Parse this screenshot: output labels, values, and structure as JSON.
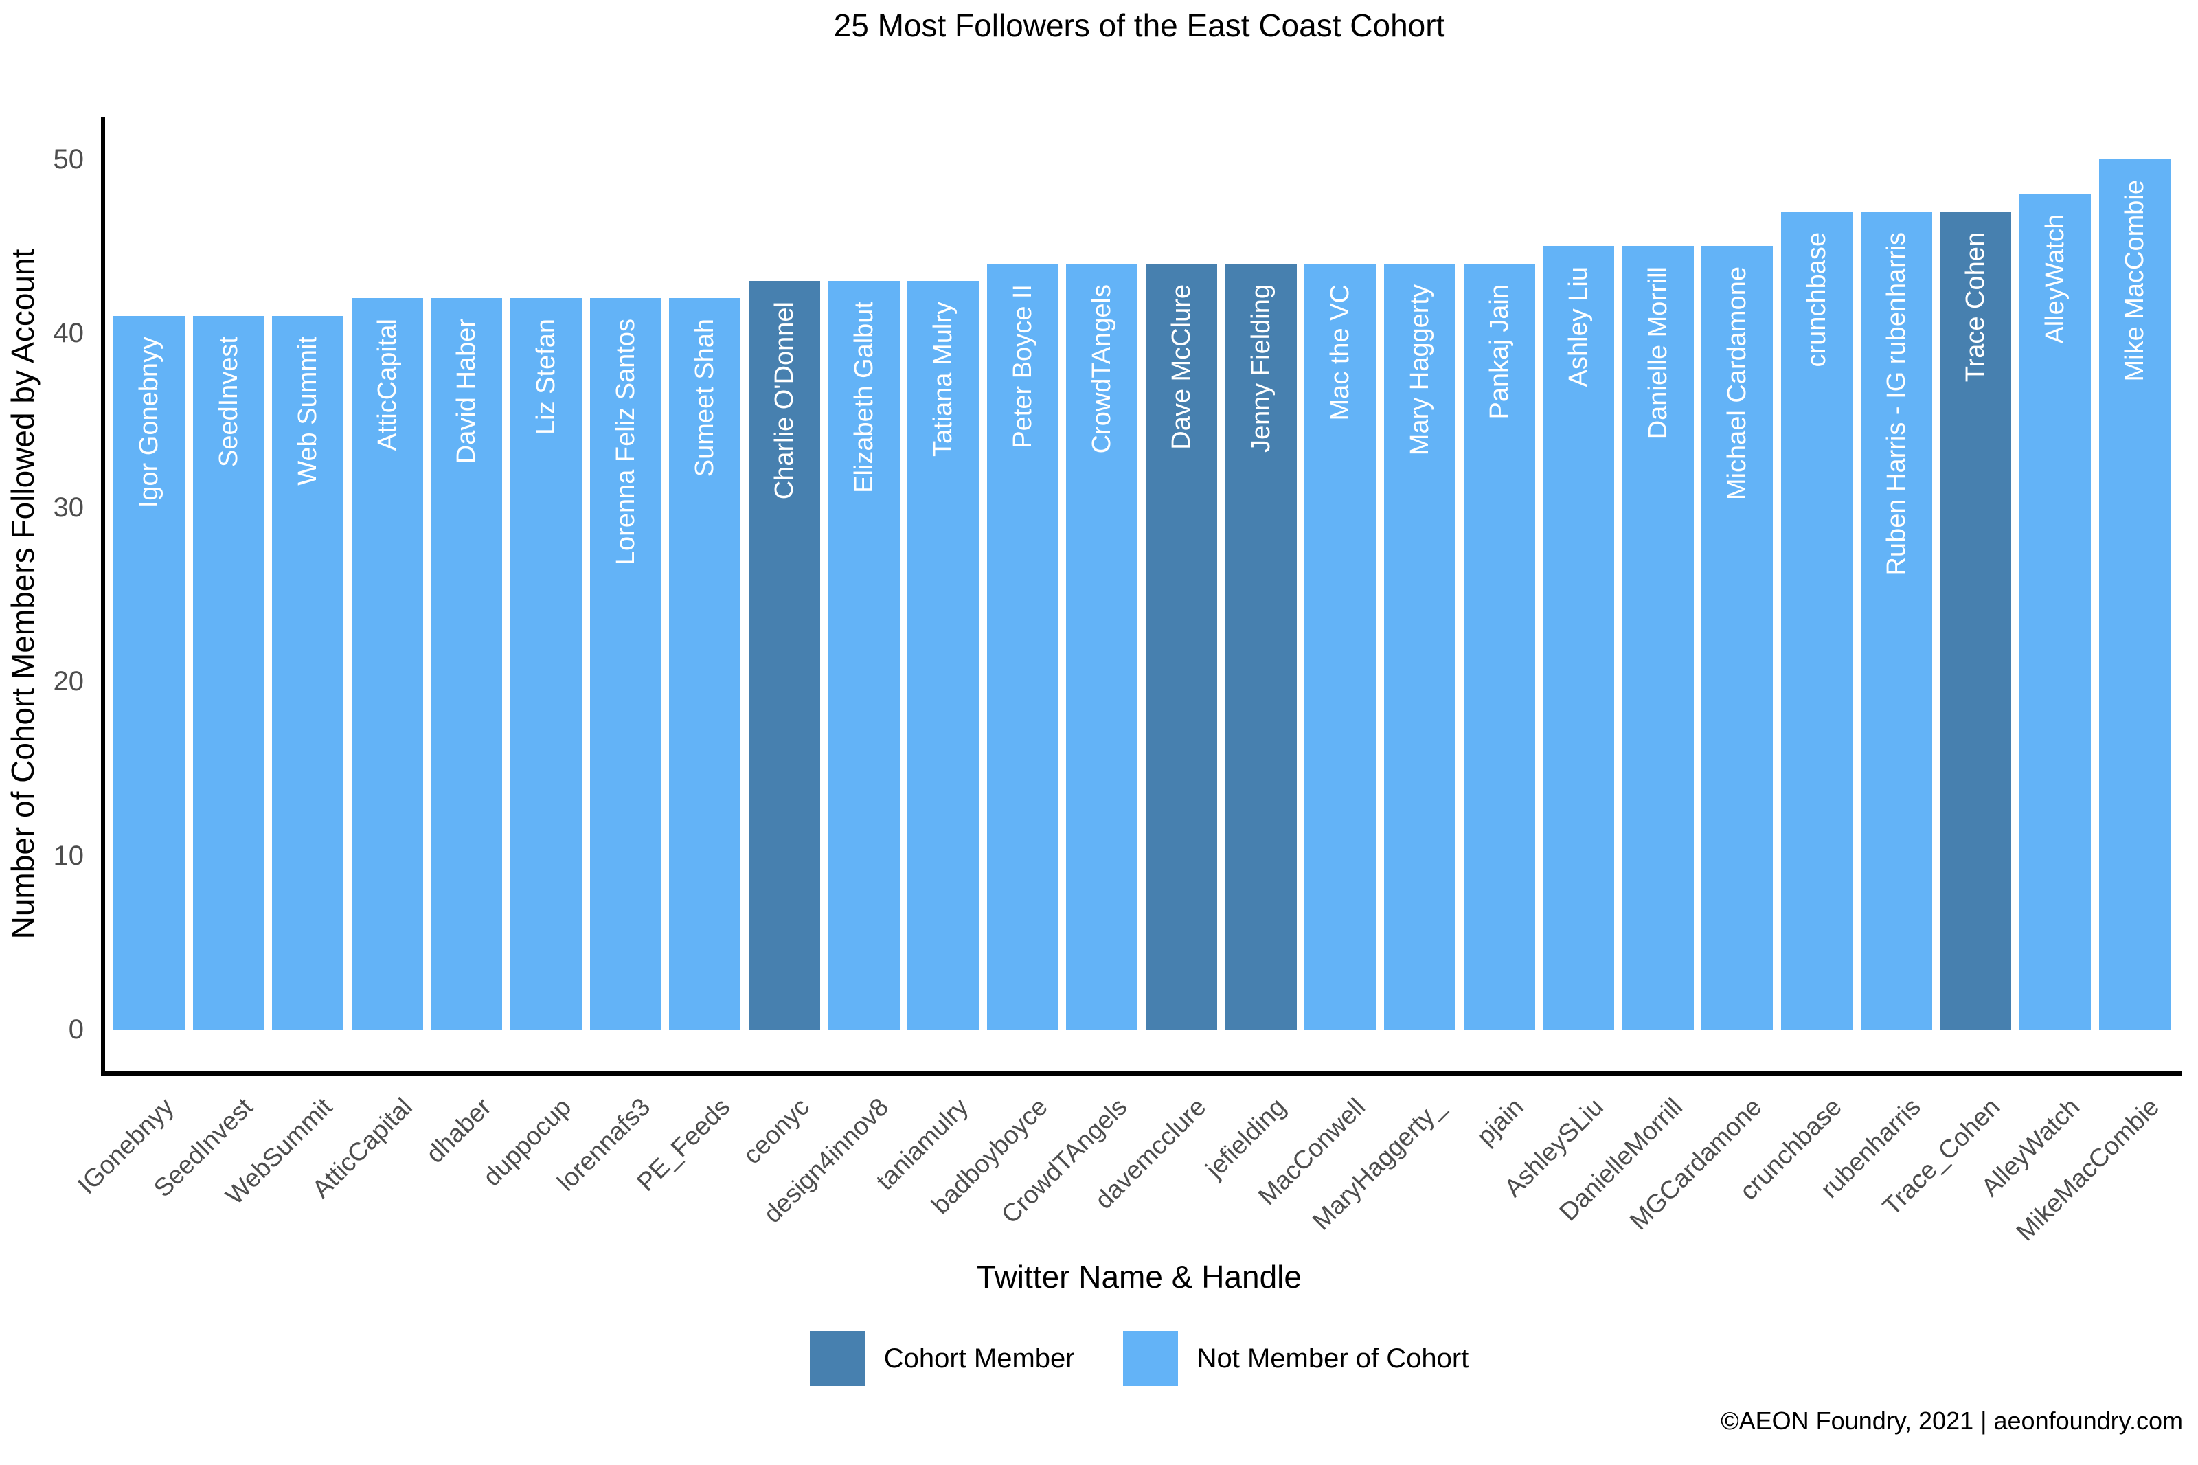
{
  "title": "25 Most Followers of the East Coast Cohort",
  "axes": {
    "y_label": "Number of Cohort Members Followed by Account",
    "x_label": "Twitter Name & Handle",
    "y_ticks": [
      0,
      10,
      20,
      30,
      40,
      50
    ]
  },
  "legend": {
    "items": [
      {
        "label": "Cohort Member",
        "color": "#4780AF"
      },
      {
        "label": "Not Member of Cohort",
        "color": "#63B3F7"
      }
    ]
  },
  "footer": "©AEON Foundry, 2021 | aeonfoundry.com",
  "chart_data": {
    "type": "bar",
    "title": "25 Most Followers of the East Coast Cohort",
    "xlabel": "Twitter Name & Handle",
    "ylabel": "Number of Cohort Members Followed by Account",
    "ylim": [
      0,
      50
    ],
    "grid": false,
    "legend_position": "bottom",
    "colors": {
      "cohort_member": "#4780AF",
      "not_member": "#63B3F7"
    },
    "categories": [
      "IGonebnyy",
      "SeedInvest",
      "WebSummit",
      "AtticCapital",
      "dhaber",
      "duppocup",
      "lorennafs3",
      "PE_Feeds",
      "ceonyc",
      "design4innov8",
      "taniamulry",
      "badboyboyce",
      "CrowdTAngels",
      "davemcclure",
      "jefielding",
      "MacConwell",
      "MaryHaggerty_",
      "pjain",
      "AshleySLiu",
      "DanielleMorrill",
      "MGCardamone",
      "crunchbase",
      "rubenharris",
      "Trace_Cohen",
      "AlleyWatch",
      "MikeMacCombie"
    ],
    "series": [
      {
        "name": "Number of Cohort Members Followed by Account",
        "values": [
          41,
          41,
          41,
          42,
          42,
          42,
          42,
          42,
          43,
          43,
          43,
          44,
          44,
          44,
          44,
          44,
          44,
          44,
          45,
          45,
          45,
          47,
          47,
          47,
          48,
          50
        ]
      }
    ],
    "bars": [
      {
        "display_name": "Igor Gonebnyy",
        "handle": "IGonebnyy",
        "value": 41,
        "cohort_member": false
      },
      {
        "display_name": "SeedInvest",
        "handle": "SeedInvest",
        "value": 41,
        "cohort_member": false
      },
      {
        "display_name": "Web Summit",
        "handle": "WebSummit",
        "value": 41,
        "cohort_member": false
      },
      {
        "display_name": "AtticCapital",
        "handle": "AtticCapital",
        "value": 42,
        "cohort_member": false
      },
      {
        "display_name": "David Haber",
        "handle": "dhaber",
        "value": 42,
        "cohort_member": false
      },
      {
        "display_name": "Liz Stefan",
        "handle": "duppocup",
        "value": 42,
        "cohort_member": false
      },
      {
        "display_name": "Lorenna Feliz Santos",
        "handle": "lorennafs3",
        "value": 42,
        "cohort_member": false
      },
      {
        "display_name": "Sumeet Shah",
        "handle": "PE_Feeds",
        "value": 42,
        "cohort_member": false
      },
      {
        "display_name": "Charlie O'Donnel",
        "handle": "ceonyc",
        "value": 43,
        "cohort_member": true
      },
      {
        "display_name": "Elizabeth Galbut",
        "handle": "design4innov8",
        "value": 43,
        "cohort_member": false
      },
      {
        "display_name": "Tatiana Mulry",
        "handle": "taniamulry",
        "value": 43,
        "cohort_member": false
      },
      {
        "display_name": "Peter Boyce II",
        "handle": "badboyboyce",
        "value": 44,
        "cohort_member": false
      },
      {
        "display_name": "CrowdTAngels",
        "handle": "CrowdTAngels",
        "value": 44,
        "cohort_member": false
      },
      {
        "display_name": "Dave McClure",
        "handle": "davemcclure",
        "value": 44,
        "cohort_member": true
      },
      {
        "display_name": "Jenny Fielding",
        "handle": "jefielding",
        "value": 44,
        "cohort_member": true
      },
      {
        "display_name": "Mac the VC",
        "handle": "MacConwell",
        "value": 44,
        "cohort_member": false
      },
      {
        "display_name": "Mary Haggerty",
        "handle": "MaryHaggerty_",
        "value": 44,
        "cohort_member": false
      },
      {
        "display_name": "Pankaj Jain",
        "handle": "pjain",
        "value": 44,
        "cohort_member": false
      },
      {
        "display_name": "Ashley Liu",
        "handle": "AshleySLiu",
        "value": 45,
        "cohort_member": false
      },
      {
        "display_name": "Danielle Morrill",
        "handle": "DanielleMorrill",
        "value": 45,
        "cohort_member": false
      },
      {
        "display_name": "Michael Cardamone",
        "handle": "MGCardamone",
        "value": 45,
        "cohort_member": false
      },
      {
        "display_name": "crunchbase",
        "handle": "crunchbase",
        "value": 47,
        "cohort_member": false
      },
      {
        "display_name": "Ruben Harris - IG rubenharris",
        "handle": "rubenharris",
        "value": 47,
        "cohort_member": false
      },
      {
        "display_name": "Trace Cohen",
        "handle": "Trace_Cohen",
        "value": 47,
        "cohort_member": true
      },
      {
        "display_name": "AlleyWatch",
        "handle": "AlleyWatch",
        "value": 48,
        "cohort_member": false
      },
      {
        "display_name": "Mike MacCombie",
        "handle": "MikeMacCombie",
        "value": 50,
        "cohort_member": false
      }
    ]
  }
}
